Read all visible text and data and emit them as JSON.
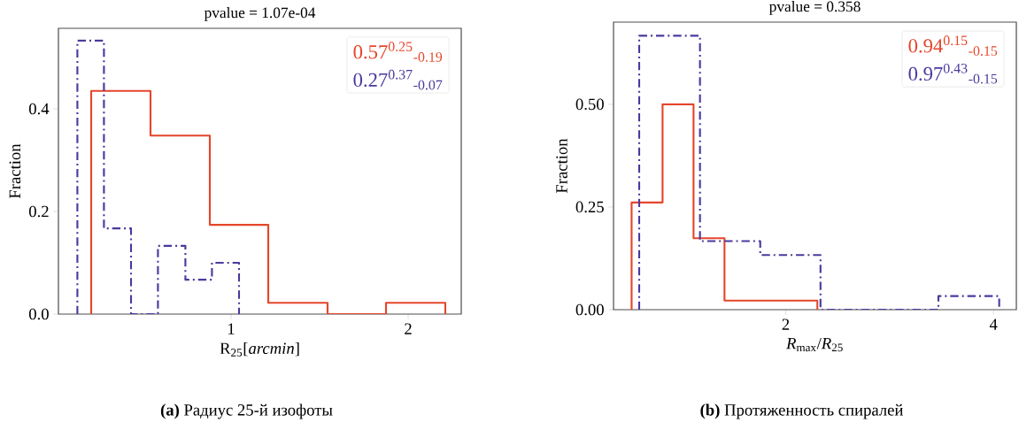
{
  "chart_data": [
    {
      "type": "histogram",
      "title": "pvalue = 1.07e-04",
      "xlabel": "R$_{25}$[*arcmin*]",
      "ylabel": "Fraction",
      "bins": [
        0.21,
        0.545,
        0.88,
        1.21,
        1.545,
        1.875,
        2.21
      ],
      "series": [
        {
          "name": "0.57$^{0.25}$$_{-0.19}$",
          "color": "#e5462a",
          "line_style": "solid",
          "values": [
            0.435,
            0.348,
            0.174,
            0.022,
            0,
            0.022
          ]
        },
        {
          "name": "0.27$^{0.37}$$_{-0.07}$",
          "color": "#4a3a9e",
          "line_style": "dashdot",
          "bins": [
            0.132,
            0.282,
            0.435,
            0.587,
            0.742,
            0.892,
            1.045
          ],
          "values": [
            0.533,
            0.167,
            0,
            0.133,
            0.067,
            0.1
          ]
        }
      ],
      "xlim": [
        0.025,
        2.3
      ],
      "ylim": [
        0,
        0.557
      ],
      "xticks": [
        1,
        2
      ],
      "yticks": [
        {
          "value": 0,
          "label": "0.0"
        },
        {
          "value": 0.2,
          "label": "0.2"
        },
        {
          "value": 0.4,
          "label": "0.4"
        }
      ],
      "legend": "top right",
      "grid": false,
      "annotations": [
        "**(a)** Радиус 25-й изофоты"
      ]
    },
    {
      "type": "histogram",
      "title": "pvalue = 0.358",
      "xlabel": "*R*$_{max}$/*R*$_{25}$",
      "ylabel": "Fraction",
      "bins": [
        0.517,
        0.815,
        1.113,
        1.411,
        1.709,
        2.007,
        2.305
      ],
      "series": [
        {
          "name": "0.94$^{0.15}$$_{-0.15}$",
          "color": "#e5462a",
          "line_style": "solid",
          "values": [
            0.261,
            0.5,
            0.174,
            0.022,
            0.022,
            0.022
          ]
        },
        {
          "name": "0.97$^{0.43}$$_{-0.15}$",
          "color": "#4a3a9e",
          "line_style": "dashdot",
          "bins": [
            0.59,
            1.175,
            1.755,
            2.335,
            2.91,
            3.47,
            4.055
          ],
          "values": [
            0.667,
            0.167,
            0.133,
            0,
            0,
            0.033
          ]
        }
      ],
      "xlim": [
        0.343,
        4.22
      ],
      "ylim": [
        0,
        0.7
      ],
      "xticks": [
        2,
        4
      ],
      "yticks": [
        {
          "value": 0,
          "label": "0.00"
        },
        {
          "value": 0.25,
          "label": "0.25"
        },
        {
          "value": 0.5,
          "label": "0.50"
        }
      ],
      "legend": "top right",
      "grid": false,
      "annotations": [
        "**(b)** Протяженность спиралей"
      ]
    }
  ]
}
